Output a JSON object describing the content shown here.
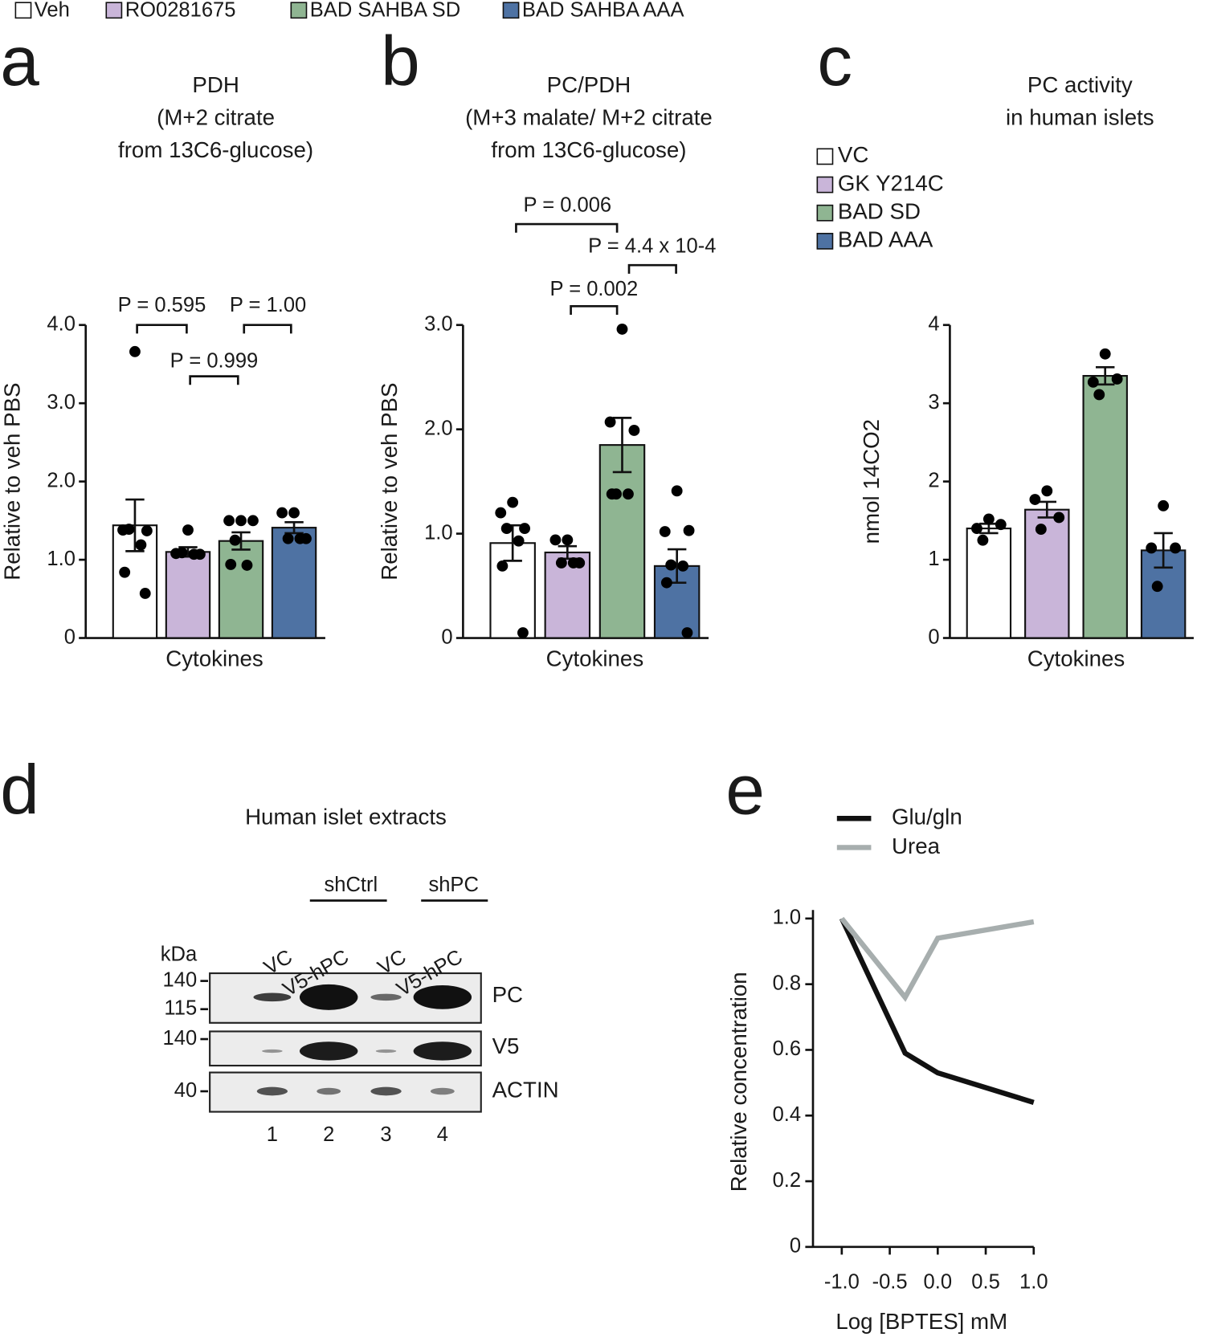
{
  "chart_data": [
    {
      "type": "bar",
      "panel": "a",
      "legend": "top",
      "title": [
        "PDH",
        "(M+2 citrate",
        "from 13C6-glucose)"
      ],
      "ylabel": "Relative to veh PBS",
      "categories": [
        "Cytokines"
      ],
      "ylim": [
        0,
        4
      ],
      "yticks": [
        0,
        {
          "value": 1,
          "label": "1.0"
        },
        {
          "value": 2,
          "label": "2.0"
        },
        {
          "value": 3,
          "label": "3.0"
        },
        {
          "value": 4,
          "label": "4.0"
        }
      ],
      "series": [
        {
          "name": "Veh",
          "color": "#ffffff",
          "values": [
            1.44
          ],
          "errors": [
            0.33
          ],
          "points": [
            [
              3.66,
              1.38,
              1.37,
              1.39,
              1.19,
              0.84,
              0.57
            ]
          ]
        },
        {
          "name": "RO0281675",
          "color": "#c9b5d9",
          "values": [
            1.1
          ],
          "errors": [
            0.06
          ],
          "points": [
            [
              1.38,
              1.08,
              1.07,
              1.09,
              1.07
            ]
          ]
        },
        {
          "name": "BAD SAHBA SD",
          "color": "#8fb592",
          "values": [
            1.24
          ],
          "errors": [
            0.11
          ],
          "points": [
            [
              1.5,
              1.5,
              1.5,
              1.25,
              0.93,
              0.94
            ]
          ]
        },
        {
          "name": "BAD SAHBA AAA",
          "color": "#4e72a3",
          "values": [
            1.41
          ],
          "errors": [
            0.07
          ],
          "points": [
            [
              1.6,
              1.6,
              1.27,
              1.27,
              1.27
            ]
          ]
        }
      ],
      "annotations": [
        "P = 0.595",
        "P = 1.00",
        "P = 0.999"
      ]
    },
    {
      "type": "bar",
      "panel": "b",
      "title": [
        "PC/PDH",
        "(M+3 malate/ M+2 citrate",
        "from 13C6-glucose)"
      ],
      "ylabel": "Relative to veh PBS",
      "categories": [
        "Cytokines"
      ],
      "ylim": [
        0,
        3
      ],
      "yticks": [
        0,
        {
          "value": 1,
          "label": "1.0"
        },
        {
          "value": 2,
          "label": "2.0"
        },
        {
          "value": 3,
          "label": "3.0"
        }
      ],
      "series": [
        {
          "color": "#ffffff",
          "values": [
            0.91
          ],
          "errors": [
            0.17
          ],
          "points": [
            [
              1.3,
              1.2,
              1.05,
              1.05,
              0.93,
              0.69,
              0.05
            ]
          ]
        },
        {
          "color": "#c9b5d9",
          "values": [
            0.82
          ],
          "errors": [
            0.06
          ],
          "points": [
            [
              0.94,
              0.94,
              0.72,
              0.72,
              0.72
            ]
          ]
        },
        {
          "color": "#8fb592",
          "values": [
            1.85
          ],
          "errors": [
            0.26
          ],
          "points": [
            [
              2.96,
              2.07,
              1.99,
              1.38,
              1.38,
              1.38
            ]
          ]
        },
        {
          "color": "#4e72a3",
          "values": [
            0.69
          ],
          "errors": [
            0.16
          ],
          "points": [
            [
              1.41,
              1.02,
              1.03,
              0.7,
              0.69,
              0.53,
              0.05
            ]
          ]
        }
      ],
      "annotations": [
        "P = 0.006",
        "P = 4.4 x 10-4",
        "P = 0.002"
      ]
    },
    {
      "type": "bar",
      "panel": "c",
      "legend": "upper left",
      "title": [
        "PC activity",
        "in human islets"
      ],
      "ylabel": "nmol 14CO2",
      "categories": [
        "Cytokines"
      ],
      "ylim": [
        0,
        4
      ],
      "yticks": [
        0,
        1,
        2,
        3,
        4
      ],
      "series": [
        {
          "name": "VC",
          "color": "#ffffff",
          "values": [
            1.4
          ],
          "errors": [
            0.06
          ],
          "points": [
            [
              1.52,
              1.4,
              1.45,
              1.25
            ]
          ]
        },
        {
          "name": "GK Y214C",
          "color": "#c9b5d9",
          "values": [
            1.64
          ],
          "errors": [
            0.1
          ],
          "points": [
            [
              1.88,
              1.77,
              1.54,
              1.39
            ]
          ]
        },
        {
          "name": "BAD SD",
          "color": "#8fb592",
          "values": [
            3.35
          ],
          "errors": [
            0.11
          ],
          "points": [
            [
              3.63,
              3.27,
              3.31,
              3.11
            ]
          ]
        },
        {
          "name": "BAD AAA",
          "color": "#4e72a3",
          "values": [
            1.12
          ],
          "errors": [
            0.22
          ],
          "points": [
            [
              1.69,
              1.15,
              1.15,
              0.66
            ]
          ]
        }
      ]
    },
    {
      "type": "line",
      "panel": "e",
      "legend": "upper left",
      "xlabel": "Log [BPTES] mM",
      "ylabel": "Relative concentration",
      "x": [
        -1.0,
        -0.34,
        0.0,
        1.0
      ],
      "xlim": [
        -1.3,
        1.0
      ],
      "xticks": [
        {
          "value": -1,
          "label": "-1.0"
        },
        -0.5,
        {
          "value": 0,
          "label": "0.0"
        },
        0.5,
        {
          "value": 1,
          "label": "1.0"
        }
      ],
      "ylim": [
        0,
        1.0
      ],
      "yticks": [
        0,
        0.2,
        0.4,
        0.6,
        0.8,
        {
          "value": 1,
          "label": "1.0"
        }
      ],
      "series": [
        {
          "name": "Glu/gln",
          "color": "#111111",
          "values": [
            1.0,
            0.59,
            0.53,
            0.44
          ]
        },
        {
          "name": "Urea",
          "color": "#a7aeae",
          "values": [
            1.0,
            0.76,
            0.94,
            0.99
          ]
        }
      ]
    }
  ],
  "blot": {
    "panel": "d",
    "title": "Human islet extracts",
    "groups": [
      "shCtrl",
      "shPC"
    ],
    "lanes": [
      "VC",
      "V5-hPC",
      "VC",
      "V5-hPC"
    ],
    "unit": "kDa",
    "markers": [
      140,
      115,
      140,
      40
    ],
    "bands": [
      "PC",
      "V5",
      "ACTIN"
    ],
    "lane_numbers": [
      1,
      2,
      3,
      4
    ]
  }
}
